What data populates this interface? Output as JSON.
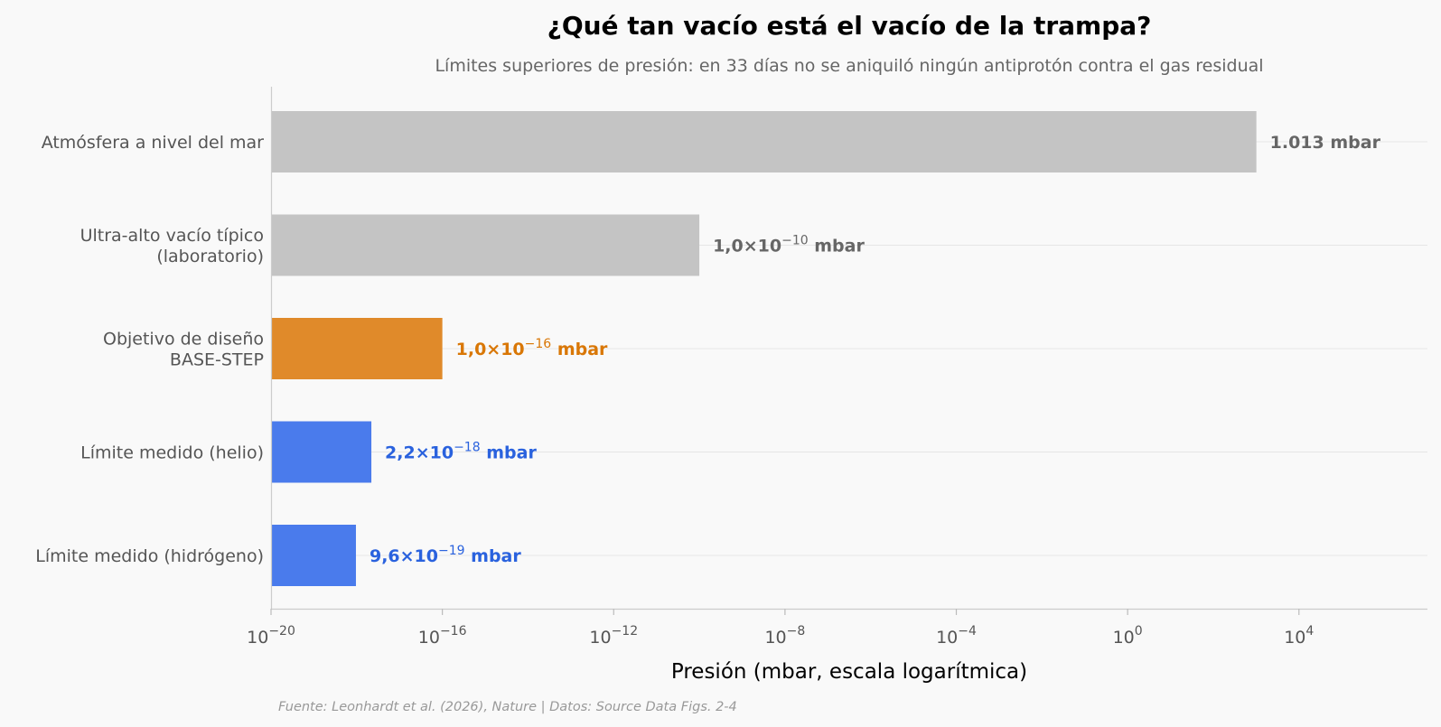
{
  "chart_data": {
    "type": "bar",
    "orientation": "horizontal",
    "title": "¿Qué tan vacío está el vacío de la trampa?",
    "subtitle": "Límites superiores de presión: en 33 días no se aniquiló ningún antiprotón contra el gas residual",
    "xlabel": "Presión (mbar, escala logarítmica)",
    "x_scale": "log",
    "xlim": [
      1e-20,
      10000000.0
    ],
    "x_ticks": [
      {
        "base": "10",
        "exp": "−20",
        "value": 1e-20
      },
      {
        "base": "10",
        "exp": "−16",
        "value": 1e-16
      },
      {
        "base": "10",
        "exp": "−12",
        "value": 1e-12
      },
      {
        "base": "10",
        "exp": "−8",
        "value": 1e-08
      },
      {
        "base": "10",
        "exp": "−4",
        "value": 0.0001
      },
      {
        "base": "10",
        "exp": "0",
        "value": 1
      },
      {
        "base": "10",
        "exp": "4",
        "value": 10000
      }
    ],
    "grid": "horizontal",
    "bars": [
      {
        "category": [
          "Atmósfera a nivel del mar"
        ],
        "value": 1013,
        "label": {
          "pre": "1.013",
          "base": "",
          "exp": "",
          "unit": " mbar"
        },
        "color": "#c4c4c4",
        "label_color": "#666666"
      },
      {
        "category": [
          "Ultra-alto vacío típico",
          "(laboratorio)"
        ],
        "value": 1e-10,
        "label": {
          "pre": "1,0×",
          "base": "10",
          "exp": "−10",
          "unit": " mbar"
        },
        "color": "#c4c4c4",
        "label_color": "#666666"
      },
      {
        "category": [
          "Objetivo de diseño",
          "BASE-STEP"
        ],
        "value": 1e-16,
        "label": {
          "pre": "1,0×",
          "base": "10",
          "exp": "−16",
          "unit": " mbar"
        },
        "color": "#e08a2a",
        "label_color": "#d97706"
      },
      {
        "category": [
          "Límite medido (helio)"
        ],
        "value": 2.2e-18,
        "label": {
          "pre": "2,2×",
          "base": "10",
          "exp": "−18",
          "unit": " mbar"
        },
        "color": "#4a7bec",
        "label_color": "#2a62de"
      },
      {
        "category": [
          "Límite medido (hidrógeno)"
        ],
        "value": 9.6e-19,
        "label": {
          "pre": "9,6×",
          "base": "10",
          "exp": "−19",
          "unit": " mbar"
        },
        "color": "#4a7bec",
        "label_color": "#2a62de"
      }
    ],
    "source": "Fuente: Leonhardt et al. (2026), Nature | Datos: Source Data Figs. 2-4"
  }
}
